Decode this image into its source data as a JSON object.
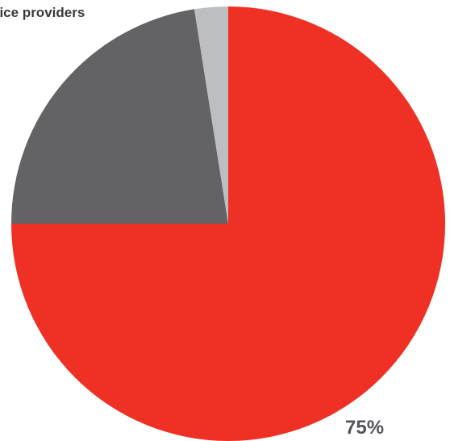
{
  "chart_data": {
    "type": "pie",
    "slices": [
      {
        "value": 75,
        "color": "#ee3124"
      },
      {
        "value": 22.5,
        "color": "#636366"
      },
      {
        "value": 2.5,
        "color": "#bcbec0"
      }
    ],
    "labels": {
      "partial_category": "vice providers",
      "main_value": "75%"
    }
  }
}
